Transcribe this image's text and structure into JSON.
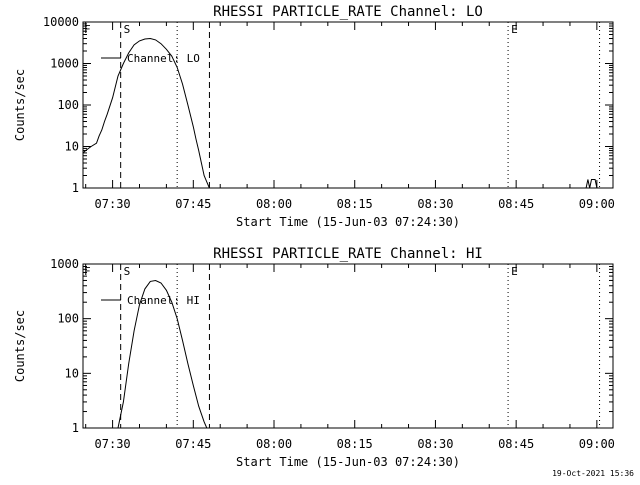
{
  "footer": {
    "timestamp": "19-Oct-2021 15:36"
  },
  "chart_data": [
    {
      "type": "line",
      "title": "RHESSI PARTICLE_RATE Channel: LO",
      "xlabel": "Start Time (15-Jun-03 07:24:30)",
      "ylabel": "Counts/sec",
      "yscale": "log",
      "xlim": [
        "07:24:30",
        "09:03:00"
      ],
      "ylim": [
        1,
        10000
      ],
      "xticks": [
        "07:30",
        "07:45",
        "08:00",
        "08:15",
        "08:30",
        "08:45",
        "09:00"
      ],
      "yticks": [
        "1",
        "10",
        "100",
        "1000",
        "10000"
      ],
      "legend": "Channel: LO",
      "legend_position": "top-left",
      "vlines": [
        {
          "time": "07:31:30",
          "style": "dashed",
          "label": "S"
        },
        {
          "time": "07:42:00",
          "style": "dotted",
          "label": ""
        },
        {
          "time": "07:48:00",
          "style": "dashed",
          "label": ""
        },
        {
          "time": "08:43:30",
          "style": "dotted",
          "label": "E"
        },
        {
          "time": "09:00:30",
          "style": "dotted",
          "label": ""
        }
      ],
      "series": [
        {
          "name": "Channel: LO",
          "x": [
            "07:24:30",
            "07:25:00",
            "07:26:00",
            "07:27:00",
            "07:27:30",
            "07:28:00",
            "07:28:30",
            "07:29:00",
            "07:30:00",
            "07:31:00",
            "07:32:00",
            "07:33:00",
            "07:34:00",
            "07:35:00",
            "07:36:00",
            "07:37:00",
            "07:38:00",
            "07:39:00",
            "07:40:00",
            "07:41:00",
            "07:42:00",
            "07:43:00",
            "07:44:00",
            "07:45:00",
            "07:45:30",
            "07:46:00",
            "07:46:30",
            "07:47:00",
            "07:47:30",
            "07:48:00"
          ],
          "y": [
            7,
            8,
            10,
            12,
            18,
            25,
            40,
            60,
            150,
            500,
            1000,
            1800,
            2800,
            3500,
            3900,
            4000,
            3700,
            3000,
            2200,
            1500,
            800,
            320,
            100,
            30,
            15,
            8,
            4,
            2,
            1.4,
            1
          ]
        },
        {
          "name": "Channel: LO",
          "x": [
            "08:58:00",
            "08:58:20",
            "08:58:40",
            "08:59:00",
            "08:59:20",
            "08:59:40",
            "09:00:00"
          ],
          "y": [
            1,
            1.6,
            1,
            1.6,
            1.6,
            1.6,
            1
          ]
        }
      ]
    },
    {
      "type": "line",
      "title": "RHESSI PARTICLE_RATE Channel: HI",
      "xlabel": "Start Time (15-Jun-03 07:24:30)",
      "ylabel": "Counts/sec",
      "yscale": "log",
      "xlim": [
        "07:24:30",
        "09:03:00"
      ],
      "ylim": [
        1,
        1000
      ],
      "xticks": [
        "07:30",
        "07:45",
        "08:00",
        "08:15",
        "08:30",
        "08:45",
        "09:00"
      ],
      "yticks": [
        "1",
        "10",
        "100",
        "1000"
      ],
      "legend": "Channel: HI",
      "legend_position": "top-left",
      "vlines": [
        {
          "time": "07:31:30",
          "style": "dashed",
          "label": "S"
        },
        {
          "time": "07:42:00",
          "style": "dotted",
          "label": ""
        },
        {
          "time": "07:48:00",
          "style": "dashed",
          "label": ""
        },
        {
          "time": "08:43:30",
          "style": "dotted",
          "label": "E"
        },
        {
          "time": "09:00:30",
          "style": "dotted",
          "label": ""
        }
      ],
      "series": [
        {
          "name": "Channel: HI",
          "x": [
            "07:31:00",
            "07:32:00",
            "07:33:00",
            "07:34:00",
            "07:35:00",
            "07:36:00",
            "07:37:00",
            "07:38:00",
            "07:39:00",
            "07:40:00",
            "07:41:00",
            "07:42:00",
            "07:43:00",
            "07:44:00",
            "07:45:00",
            "07:46:00",
            "07:47:00",
            "07:47:30"
          ],
          "y": [
            1,
            3,
            15,
            60,
            180,
            350,
            480,
            500,
            450,
            330,
            200,
            100,
            40,
            15,
            6,
            2.5,
            1.3,
            1
          ]
        }
      ]
    }
  ]
}
